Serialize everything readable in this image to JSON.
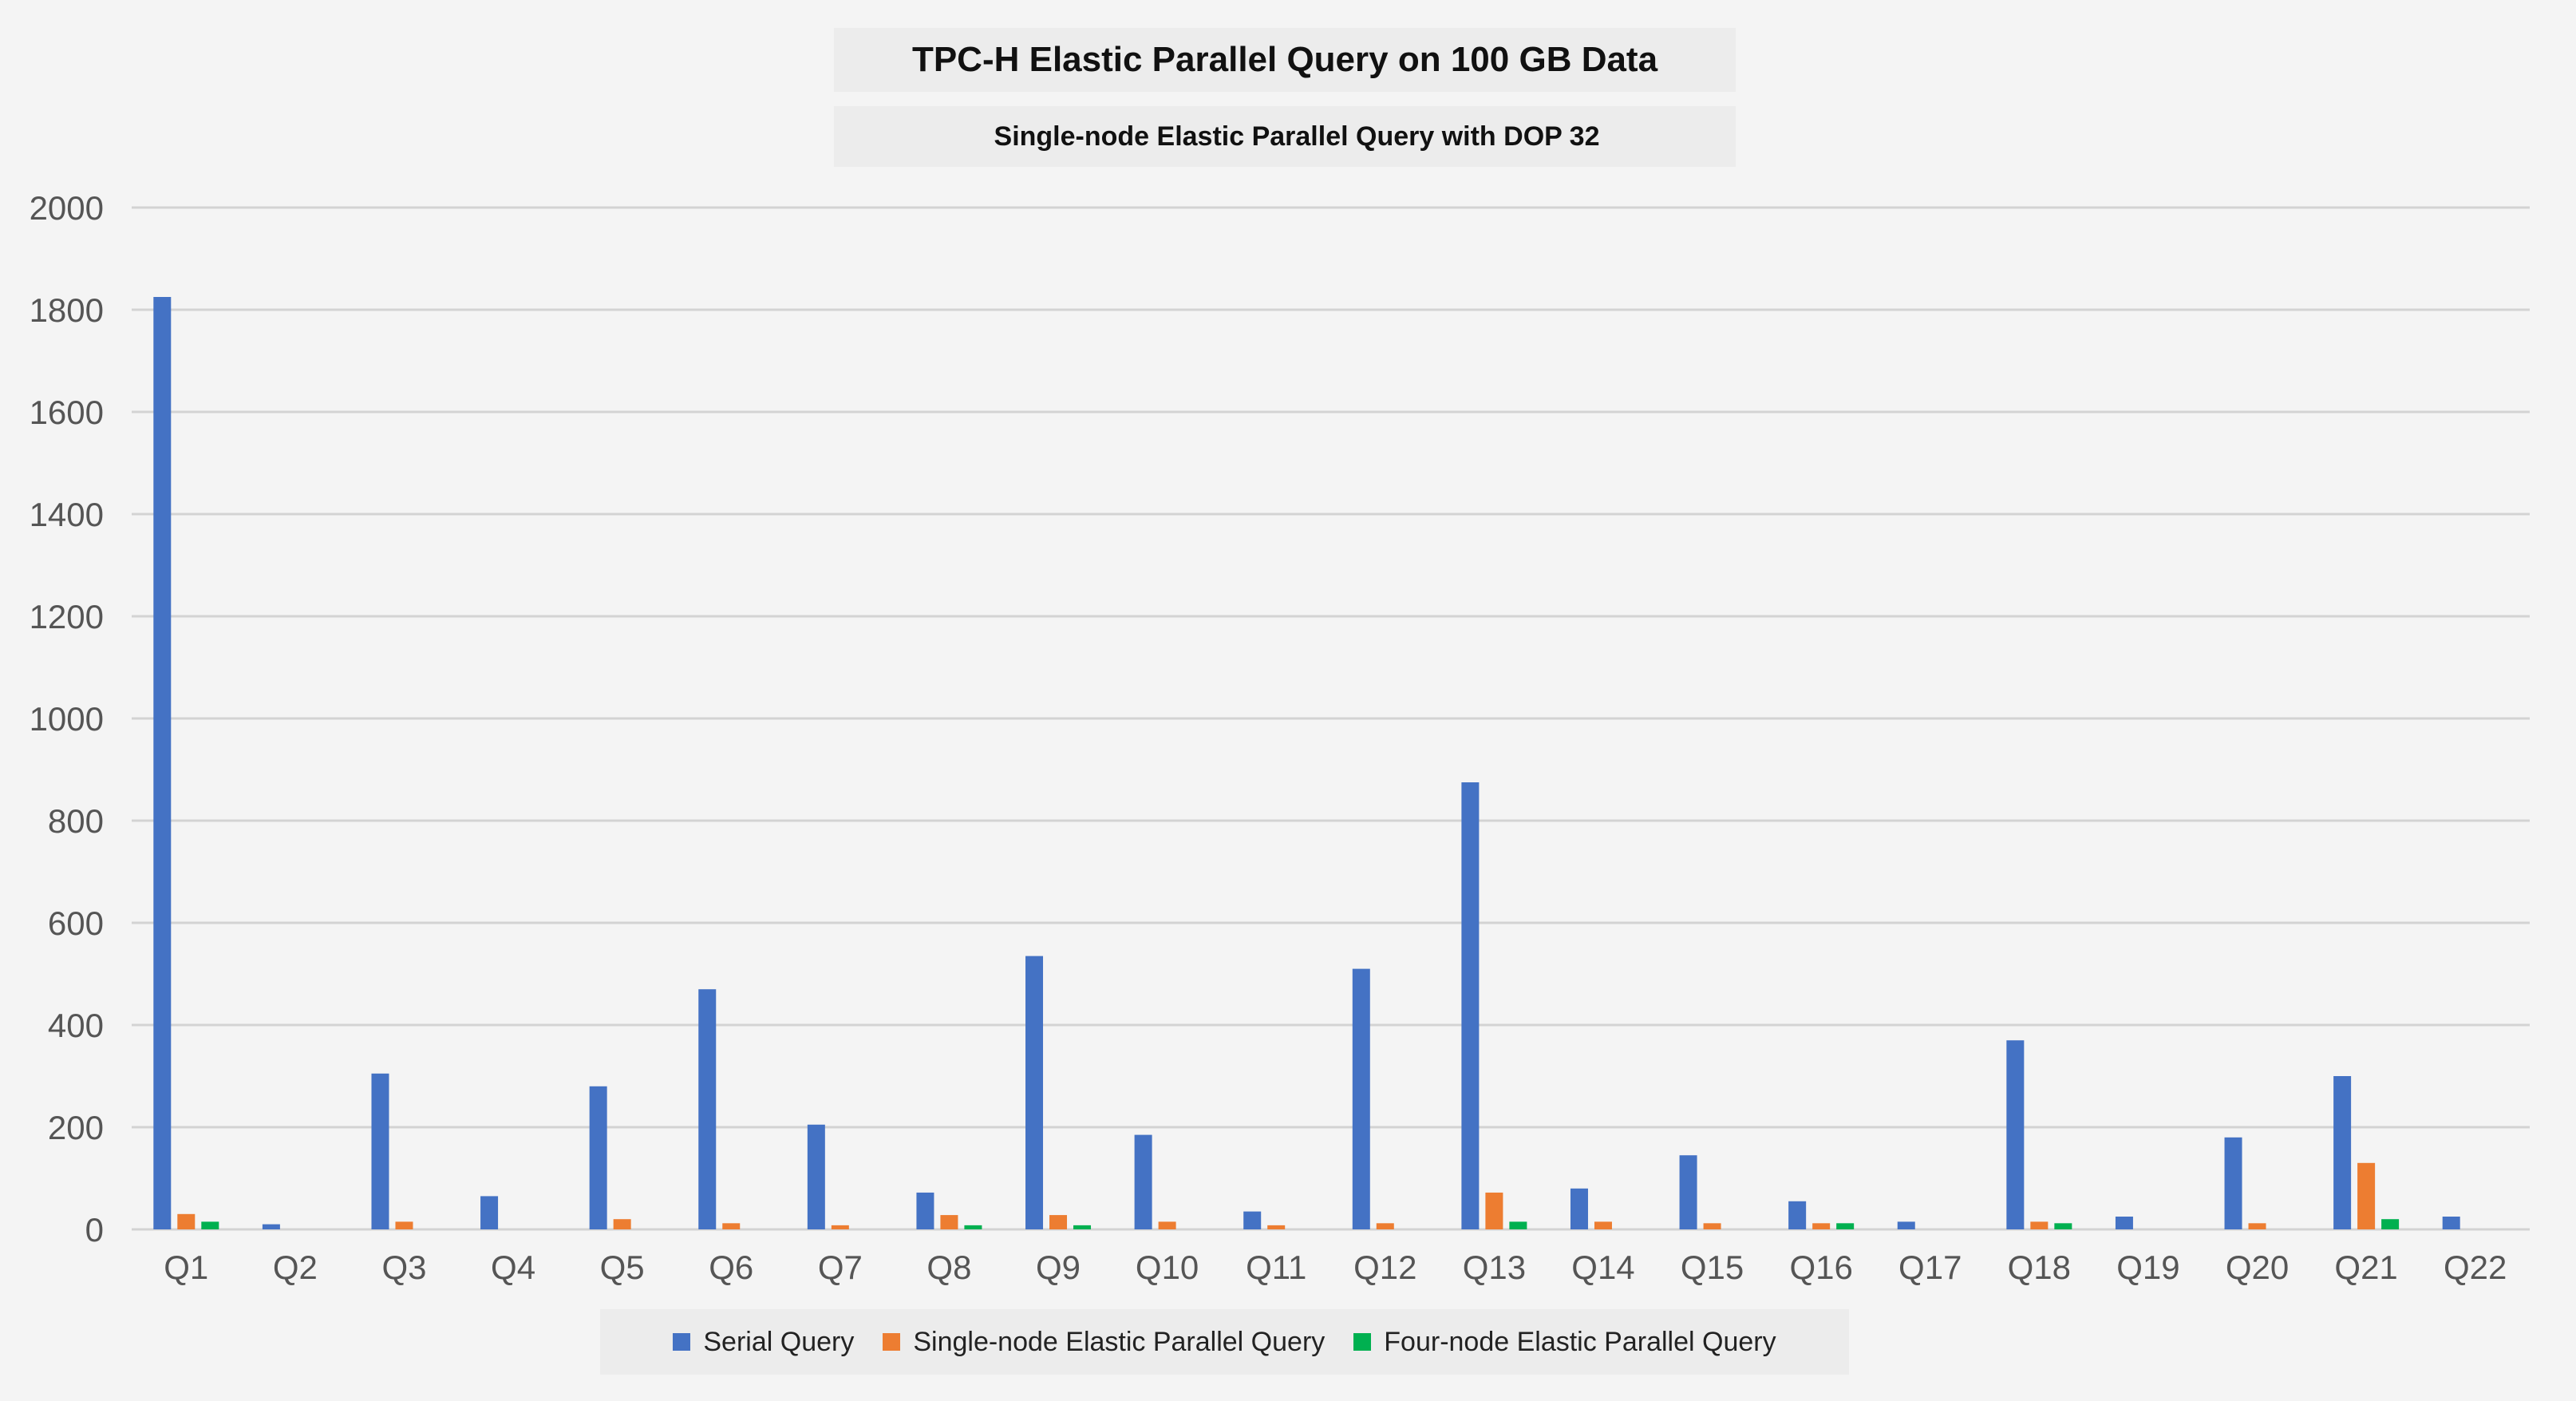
{
  "chart_data": {
    "type": "bar",
    "title": "TPC-H Elastic Parallel Query on 100 GB Data",
    "subtitle": "Single-node Elastic Parallel Query with DOP 32",
    "xlabel": "",
    "ylabel": "",
    "ylim": [
      0,
      2000
    ],
    "yticks": [
      "0",
      "200",
      "400",
      "600",
      "800",
      "1000",
      "1200",
      "1400",
      "1600",
      "1800",
      "2000"
    ],
    "grid": true,
    "legend_position": "bottom",
    "categories": [
      "Q1",
      "Q2",
      "Q3",
      "Q4",
      "Q5",
      "Q6",
      "Q7",
      "Q8",
      "Q9",
      "Q10",
      "Q11",
      "Q12",
      "Q13",
      "Q14",
      "Q15",
      "Q16",
      "Q17",
      "Q18",
      "Q19",
      "Q20",
      "Q21",
      "Q22"
    ],
    "series": [
      {
        "name": "Serial Query",
        "color": "#4472c4",
        "values": [
          1825,
          10,
          305,
          65,
          280,
          470,
          205,
          72,
          535,
          185,
          35,
          510,
          875,
          80,
          145,
          55,
          15,
          370,
          25,
          180,
          300,
          25
        ]
      },
      {
        "name": "Single-node Elastic Parallel Query",
        "color": "#ed7d31",
        "values": [
          30,
          0,
          15,
          0,
          20,
          12,
          8,
          28,
          28,
          15,
          8,
          12,
          72,
          15,
          12,
          12,
          0,
          15,
          0,
          12,
          130,
          0
        ]
      },
      {
        "name": "Four-node Elastic Parallel Query",
        "color": "#00b050",
        "values": [
          15,
          0,
          0,
          0,
          0,
          0,
          0,
          8,
          8,
          0,
          0,
          0,
          15,
          0,
          0,
          12,
          0,
          12,
          0,
          0,
          20,
          0
        ]
      }
    ]
  }
}
